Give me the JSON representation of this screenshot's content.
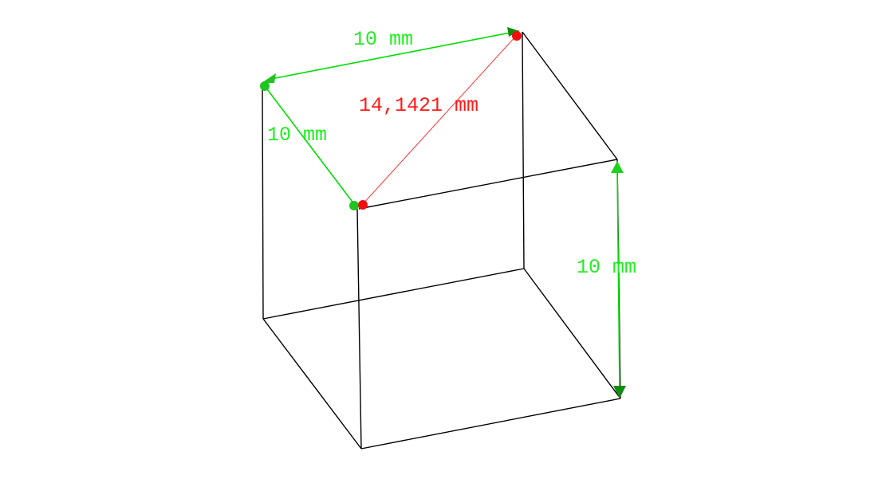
{
  "viewport": {
    "object": "wireframe-cube",
    "colors": {
      "edge": "#000000",
      "dimension": "#00dd00",
      "diagonal": "#ff2020",
      "background": "#ffffff"
    }
  },
  "dimensions": [
    {
      "id": "top-back-edge",
      "label": "10 mm",
      "kind": "length"
    },
    {
      "id": "top-left-edge",
      "label": "10 mm",
      "kind": "length"
    },
    {
      "id": "right-vertical-edge",
      "label": "10 mm",
      "kind": "length"
    },
    {
      "id": "top-face-diagonal",
      "label": "14,1421 mm",
      "kind": "diagonal"
    }
  ]
}
